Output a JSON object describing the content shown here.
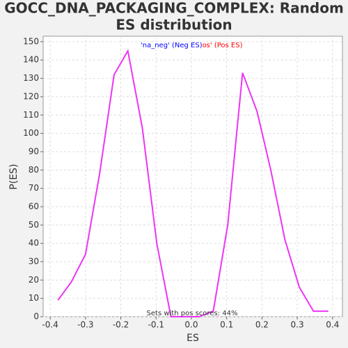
{
  "chart_data": {
    "type": "line",
    "title": [
      "GOCC_DNA_PACKAGING_COMPLEX: Random",
      "ES distribution"
    ],
    "x_label": "ES",
    "y_label": "P(ES)",
    "legend": [
      {
        "text": "'na_pos' (Pos ES)",
        "color": "#ff0000"
      },
      {
        "text": "'na_neg' (Neg ES)",
        "color": "#0000ff"
      }
    ],
    "annotation": "Sets with pos scores: 44%",
    "grid": true,
    "xlim": [
      -0.42,
      0.428
    ],
    "ylim": [
      0,
      153
    ],
    "xticks": [
      -0.4,
      -0.3,
      -0.2,
      -0.1,
      {
        "value": 0,
        "label": "0.0"
      },
      0.1,
      0.2,
      0.3,
      0.4
    ],
    "yticks": [
      0,
      10,
      20,
      30,
      40,
      50,
      60,
      70,
      80,
      90,
      100,
      110,
      120,
      130,
      140,
      150
    ],
    "series": [
      {
        "color": "#ee33f5",
        "x": [
          -0.378,
          -0.34,
          -0.3,
          -0.26,
          -0.219,
          -0.18,
          -0.139,
          -0.098,
          -0.058,
          -0.018,
          0.022,
          0.062,
          0.103,
          0.145,
          0.186,
          0.225,
          0.265,
          0.306,
          0.346,
          0.388
        ],
        "values": [
          9,
          19,
          34,
          78,
          132,
          145,
          103,
          40,
          0,
          0,
          0,
          3,
          50,
          133,
          112,
          80,
          42,
          16,
          3,
          3
        ]
      }
    ]
  }
}
